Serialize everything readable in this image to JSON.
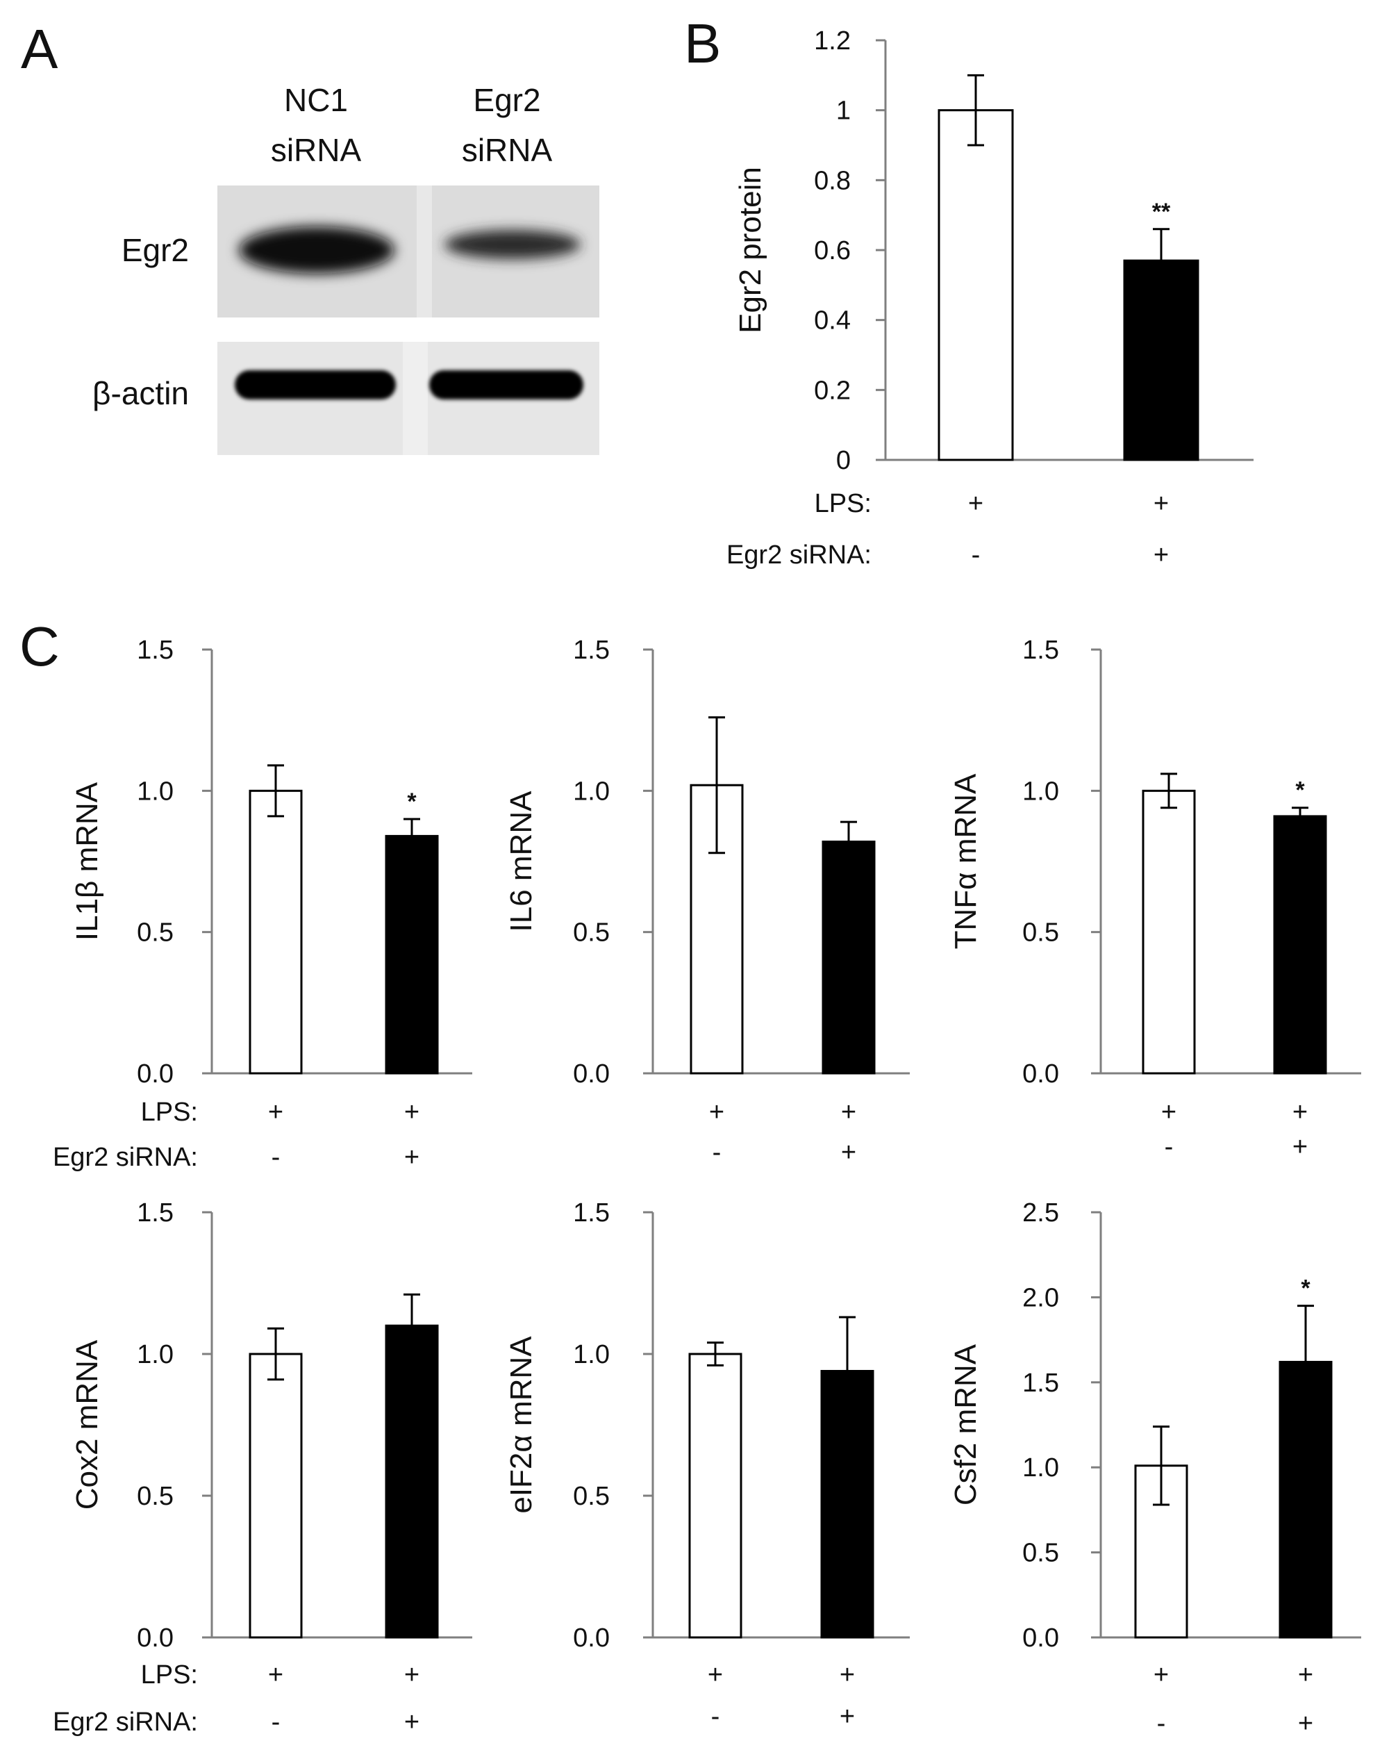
{
  "panels": {
    "A": {
      "letter": "A",
      "lanes": [
        "NC1\nsiRNA",
        "Egr2\nsiRNA"
      ],
      "lane_lines": [
        [
          "NC1",
          "siRNA"
        ],
        [
          "Egr2",
          "siRNA"
        ]
      ],
      "rows": [
        "Egr2",
        "β-actin"
      ]
    },
    "B": {
      "letter": "B"
    },
    "C": {
      "letter": "C"
    }
  },
  "conditions": {
    "row_labels": [
      "LPS:",
      "Egr2 siRNA:"
    ],
    "lps": [
      "+",
      "+"
    ],
    "egr2_sirna": [
      "-",
      "+"
    ]
  },
  "colors": {
    "control_bar": "#ffffff",
    "sirna_bar": "#000000",
    "axis": "#7f7f7f"
  },
  "chart_data": [
    {
      "id": "B",
      "type": "bar",
      "categories": [
        "NC1 siRNA",
        "Egr2 siRNA"
      ],
      "values": [
        1.0,
        0.57
      ],
      "errors": [
        0.1,
        0.09
      ],
      "significance": [
        "",
        "**"
      ],
      "ylabel": "Egr2 protein",
      "ylim": [
        0,
        1.2
      ],
      "yticks": [
        "0",
        "0.2",
        "0.4",
        "0.6",
        "0.8",
        "1",
        "1.2"
      ]
    },
    {
      "id": "C1",
      "type": "bar",
      "categories": [
        "NC1 siRNA",
        "Egr2 siRNA"
      ],
      "values": [
        1.0,
        0.84
      ],
      "errors": [
        0.09,
        0.06
      ],
      "significance": [
        "",
        "*"
      ],
      "ylabel": "IL1β mRNA",
      "ylim": [
        0,
        1.5
      ],
      "yticks": [
        "0.0",
        "0.5",
        "1.0",
        "1.5"
      ]
    },
    {
      "id": "C2",
      "type": "bar",
      "categories": [
        "NC1 siRNA",
        "Egr2 siRNA"
      ],
      "values": [
        1.02,
        0.82
      ],
      "errors": [
        0.24,
        0.07
      ],
      "significance": [
        "",
        ""
      ],
      "ylabel": "IL6 mRNA",
      "ylim": [
        0,
        1.5
      ],
      "yticks": [
        "0.0",
        "0.5",
        "1.0",
        "1.5"
      ]
    },
    {
      "id": "C3",
      "type": "bar",
      "categories": [
        "NC1 siRNA",
        "Egr2 siRNA"
      ],
      "values": [
        1.0,
        0.91
      ],
      "errors": [
        0.06,
        0.03
      ],
      "significance": [
        "",
        "*"
      ],
      "ylabel": "TNFα mRNA",
      "ylim": [
        0,
        1.5
      ],
      "yticks": [
        "0.0",
        "0.5",
        "1.0",
        "1.5"
      ]
    },
    {
      "id": "C4",
      "type": "bar",
      "categories": [
        "NC1 siRNA",
        "Egr2 siRNA"
      ],
      "values": [
        1.0,
        1.1
      ],
      "errors": [
        0.09,
        0.11
      ],
      "significance": [
        "",
        ""
      ],
      "ylabel": "Cox2 mRNA",
      "ylim": [
        0,
        1.5
      ],
      "yticks": [
        "0.0",
        "0.5",
        "1.0",
        "1.5"
      ]
    },
    {
      "id": "C5",
      "type": "bar",
      "categories": [
        "NC1 siRNA",
        "Egr2 siRNA"
      ],
      "values": [
        1.0,
        0.94
      ],
      "errors": [
        0.04,
        0.19
      ],
      "significance": [
        "",
        ""
      ],
      "ylabel": "eIF2α mRNA",
      "ylim": [
        0,
        1.5
      ],
      "yticks": [
        "0.0",
        "0.5",
        "1.0",
        "1.5"
      ]
    },
    {
      "id": "C6",
      "type": "bar",
      "categories": [
        "NC1 siRNA",
        "Egr2 siRNA"
      ],
      "values": [
        1.01,
        1.62
      ],
      "errors": [
        0.23,
        0.33
      ],
      "significance": [
        "",
        "*"
      ],
      "ylabel": "Csf2 mRNA",
      "ylim": [
        0,
        2.5
      ],
      "yticks": [
        "0.0",
        "0.5",
        "1.0",
        "1.5",
        "2.0",
        "2.5"
      ]
    }
  ]
}
